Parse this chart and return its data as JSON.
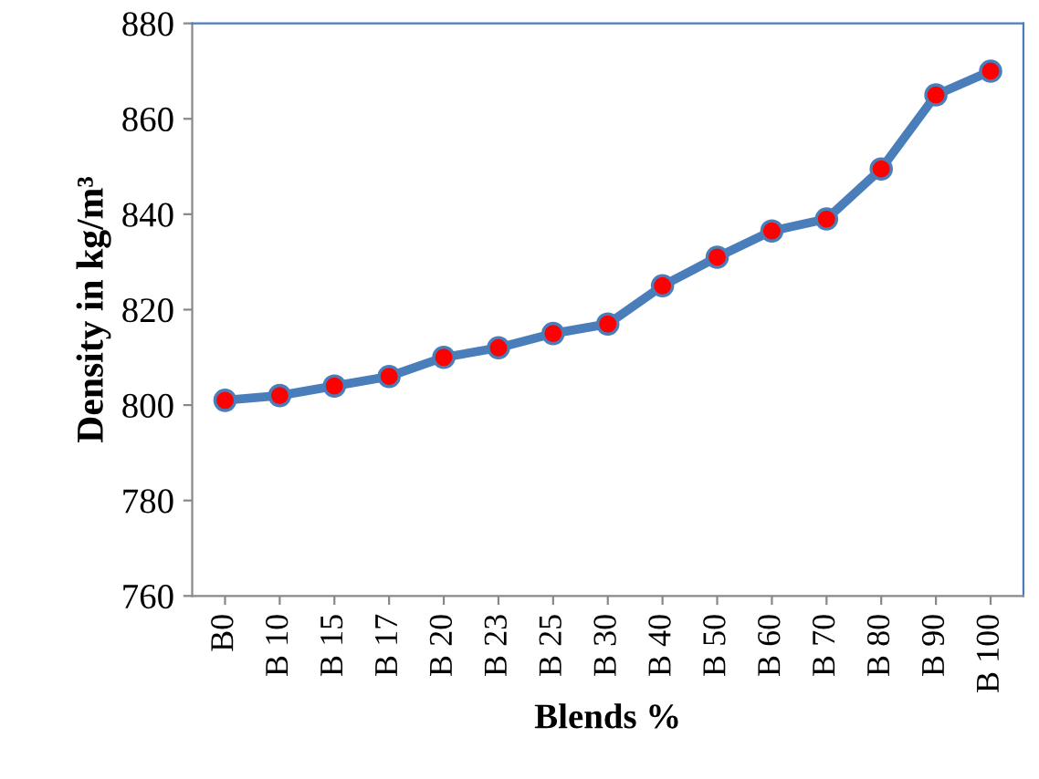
{
  "chart_data": {
    "type": "line",
    "xlabel": "Blends %",
    "ylabel": "Density in kg/m³",
    "categories": [
      "B0",
      "B 10",
      "B 15",
      "B 17",
      "B 20",
      "B 23",
      "B 25",
      "B 30",
      "B 40",
      "B 50",
      "B 60",
      "B 70",
      "B 80",
      "B 90",
      "B 100"
    ],
    "series": [
      {
        "color": "#4a7ebb",
        "values": [
          801,
          802,
          804,
          806,
          810,
          812,
          815,
          817,
          825,
          831,
          836.5,
          839,
          849.5,
          865,
          870
        ]
      }
    ],
    "ylim": [
      760,
      880
    ],
    "yticks": [
      760,
      780,
      800,
      820,
      840,
      860,
      880
    ],
    "grid": false,
    "legend": false,
    "marker": "circle",
    "line_style": "solid"
  }
}
